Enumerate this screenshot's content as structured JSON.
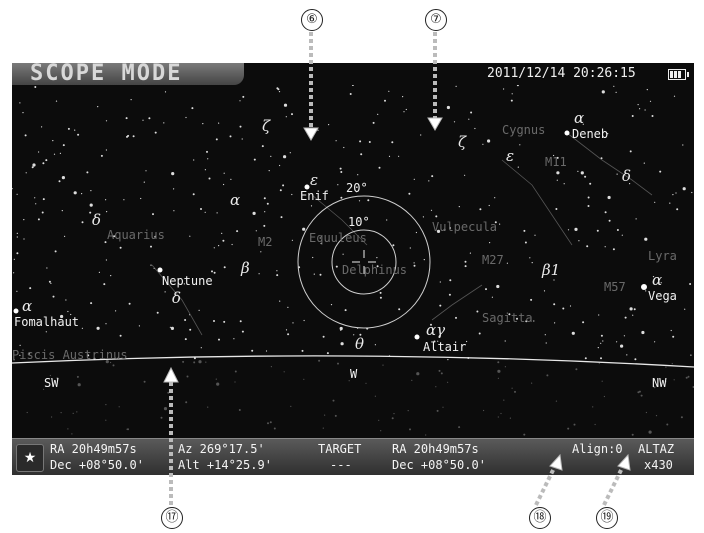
{
  "callouts": {
    "c6": "⑥",
    "c7": "⑦",
    "c17": "⑰",
    "c18": "⑱",
    "c19": "⑲"
  },
  "header": {
    "mode": "SCOPE MODE",
    "datetime": "2011/12/14 20:26:15"
  },
  "sky": {
    "named": {
      "deneb": "Deneb",
      "enif": "Enif",
      "neptune": "Neptune",
      "vega": "Vega",
      "fomalhaut": "Fomalhaut",
      "altair": "Altair"
    },
    "constellations": {
      "cygnus": "Cygnus",
      "aquarius": "Aquarius",
      "equuleus": "Equuleus",
      "delphinus": "Delphinus",
      "vulpecula": "Vulpecula",
      "lyra": "Lyra",
      "sagitta": "Sagitta",
      "piscis": "Piscis Austrinus"
    },
    "objects": {
      "m2": "M2",
      "m27": "M27",
      "m57": "M57",
      "m11": "M11"
    },
    "greek": {
      "zeta1": "ζ",
      "zeta2": "ζ",
      "epsilon1": "ε",
      "epsilon2": "ε",
      "delta1": "δ",
      "delta2": "δ",
      "delta3": "δ",
      "alpha1": "α",
      "alpha2": "α",
      "alpha3": "α",
      "alpha4": "α",
      "beta1": "β",
      "beta2": "β1",
      "theta": "θ",
      "gamma": "αγ"
    },
    "fov": {
      "ring20": "20°",
      "ring10": "10°"
    },
    "compass": {
      "sw": "SW",
      "w": "W",
      "nw": "NW"
    }
  },
  "status": {
    "ra1": "RA  20h49m57s",
    "dec1": "Dec +08°50.0'",
    "az": "Az  269°17.5'",
    "alt": "Alt +14°25.9'",
    "target_label": "TARGET",
    "target_value": "---",
    "ra2": "RA  20h49m57s",
    "dec2": "Dec +08°50.0'",
    "align": "Align:0",
    "mount": "ALTAZ",
    "zoom": "x430"
  }
}
